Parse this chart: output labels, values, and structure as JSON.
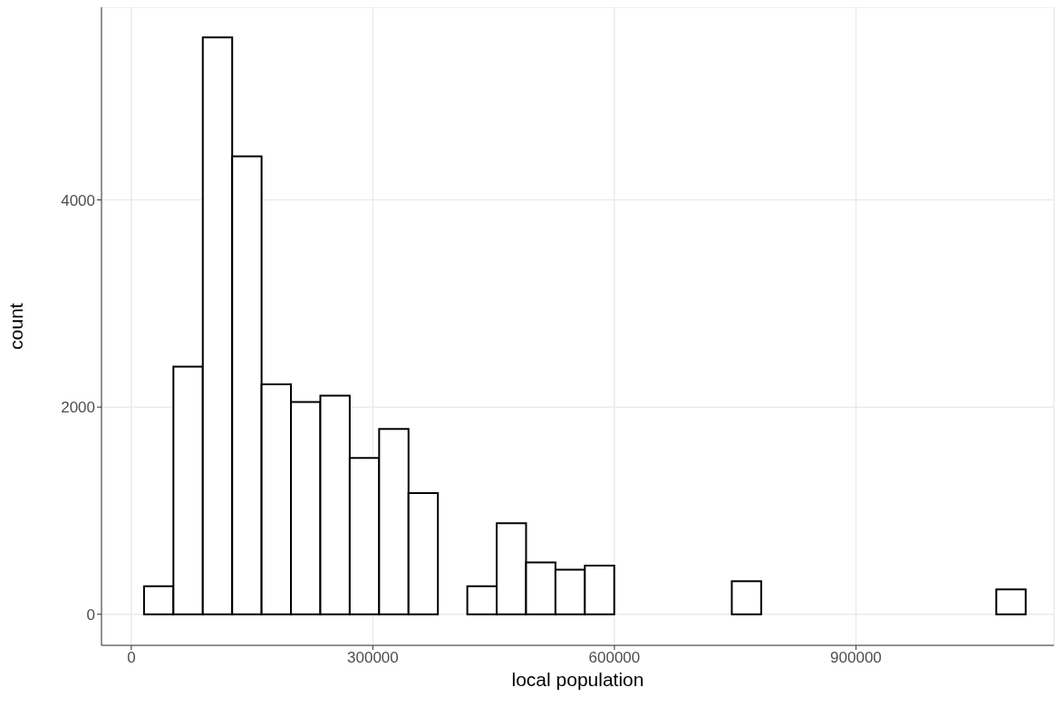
{
  "chart_data": {
    "type": "histogram",
    "xlabel": "local population",
    "ylabel": "count",
    "bins": [
      15800,
      52300,
      88800,
      125300,
      161800,
      198300,
      234800,
      271300,
      307800,
      344300,
      380800,
      417300,
      453800,
      490300,
      526800,
      563300,
      599800,
      636300,
      672800,
      709300,
      745800,
      782300,
      818800,
      855300,
      891800,
      928300,
      964800,
      1001300,
      1037800,
      1074300,
      1110800
    ],
    "values": [
      270,
      2390,
      5570,
      4420,
      2220,
      2050,
      2110,
      1510,
      1790,
      1170,
      0,
      270,
      880,
      500,
      430,
      470,
      0,
      0,
      0,
      0,
      320,
      0,
      0,
      0,
      0,
      0,
      0,
      0,
      0,
      240
    ],
    "color": "#ffffff",
    "xlim": [
      -37000,
      1146000
    ],
    "xticks": [
      0,
      300000,
      600000,
      900000
    ],
    "ylim": [
      -300,
      5860
    ],
    "yticks": [
      0,
      2000,
      4000
    ],
    "grid": true
  }
}
